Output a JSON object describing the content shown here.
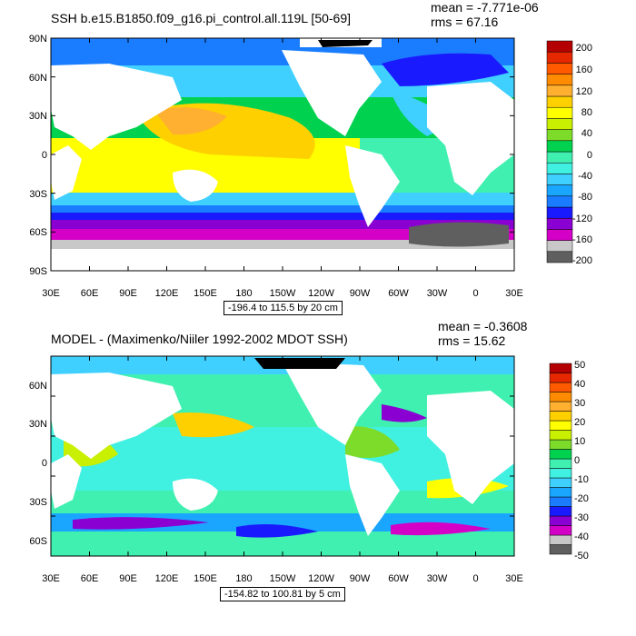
{
  "colors": {
    "land": "#ffffff",
    "frame": "#000000",
    "ice": "#000000",
    "ssh_levels": [
      "#5f5f5f",
      "#c8c8c8",
      "#d400c8",
      "#8a00d2",
      "#1a1aff",
      "#1a7dff",
      "#1aa5ff",
      "#40d0ff",
      "#40f0e0",
      "#40f0b0",
      "#00d250",
      "#7ddc2a",
      "#c8f000",
      "#ffff00",
      "#ffd000",
      "#ffb030",
      "#ff8c00",
      "#ff5a00",
      "#e62800",
      "#b40000"
    ]
  },
  "top_panel": {
    "title": "SSH b.e15.B1850.f09_g16.pi_control.all.119L [50-69]",
    "mean_text": "mean = -7.771e-06",
    "rms_text": "rms = 67.16",
    "range_text": "-196.4 to 115.5 by 20 cm",
    "lat_labels": [
      "90N",
      "60N",
      "30N",
      "0",
      "30S",
      "60S",
      "90S"
    ],
    "lon_labels": [
      "30E",
      "60E",
      "90E",
      "120E",
      "150E",
      "180",
      "150W",
      "120W",
      "90W",
      "60W",
      "30W",
      "0",
      "30E"
    ],
    "colorbar_labels": [
      "200",
      "160",
      "120",
      "80",
      "40",
      "0",
      "-40",
      "-80",
      "-120",
      "-160",
      "-200"
    ]
  },
  "bottom_panel": {
    "title": "MODEL - (Maximenko/Niiler 1992-2002 MDOT SSH)",
    "mean_text": "mean = -0.3608",
    "rms_text": "rms = 15.62",
    "range_text": "-154.82 to 100.81 by 5 cm",
    "lat_labels": [
      "60N",
      "30N",
      "0",
      "30S",
      "60S"
    ],
    "lon_labels": [
      "30E",
      "60E",
      "90E",
      "120E",
      "150E",
      "180",
      "150W",
      "120W",
      "90W",
      "60W",
      "30W",
      "0",
      "30E"
    ],
    "colorbar_labels": [
      "50",
      "40",
      "30",
      "20",
      "10",
      "0",
      "-10",
      "-20",
      "-30",
      "-40",
      "-50"
    ]
  }
}
